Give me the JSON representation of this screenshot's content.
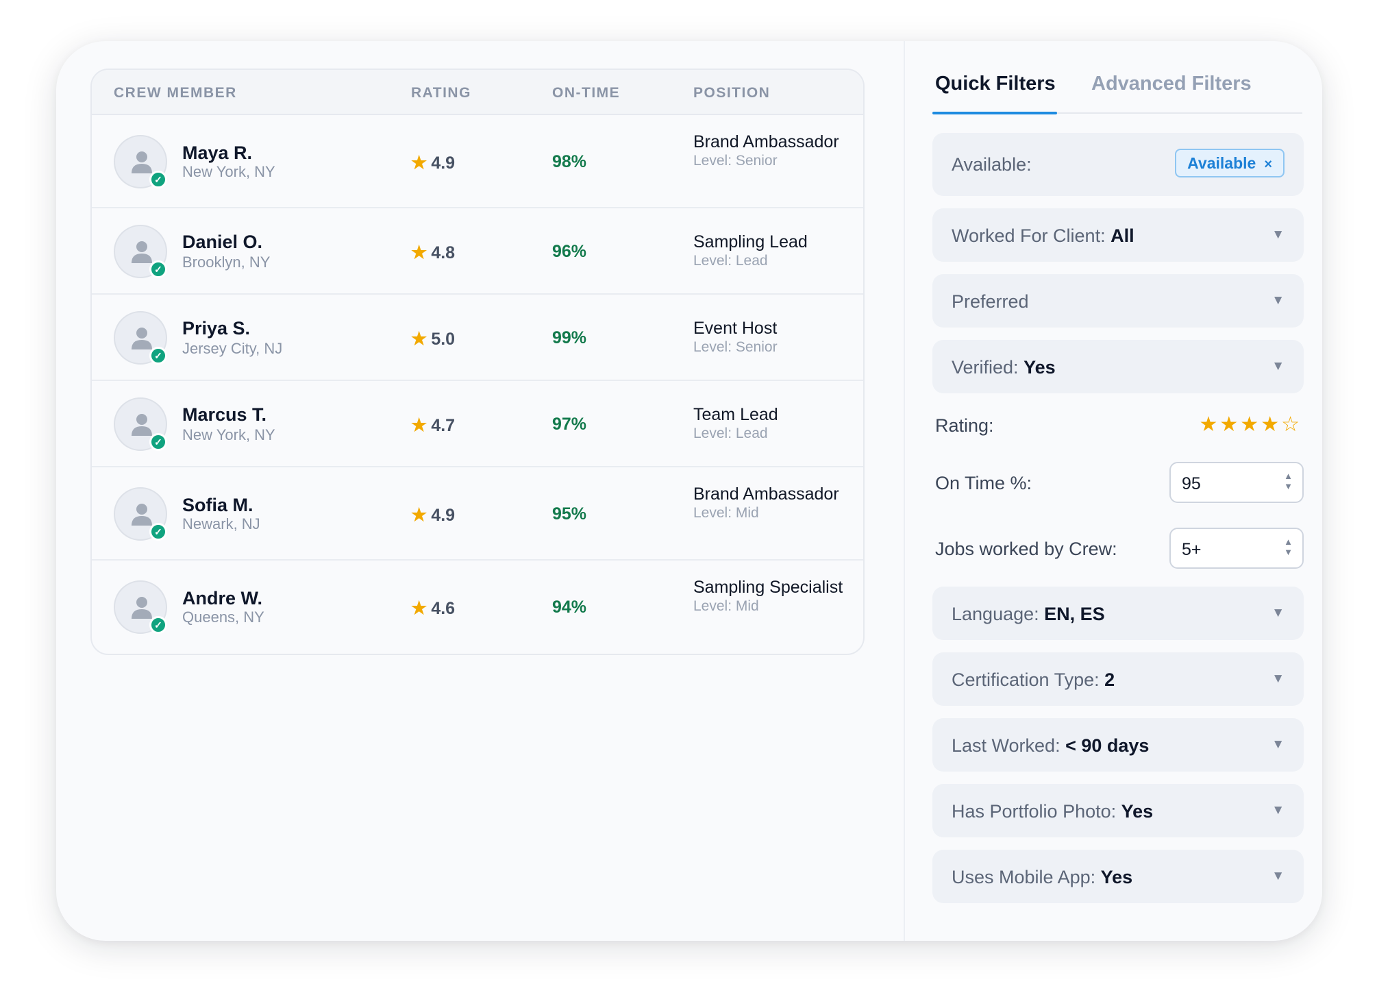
{
  "table": {
    "headers": {
      "member": "CREW MEMBER",
      "rating": "RATING",
      "ontime": "ON-TIME",
      "position": "POSITION"
    },
    "rows": [
      {
        "name": "Maya R.",
        "location": "New York, NY",
        "rating": "4.9",
        "ontime": "98%",
        "position": "Brand Ambassador",
        "level": "Level: Senior"
      },
      {
        "name": "Daniel O.",
        "location": "Brooklyn, NY",
        "rating": "4.8",
        "ontime": "96%",
        "position": "Sampling Lead",
        "level": "Level: Lead"
      },
      {
        "name": "Priya S.",
        "location": "Jersey City, NJ",
        "rating": "5.0",
        "ontime": "99%",
        "position": "Event Host",
        "level": "Level: Senior"
      },
      {
        "name": "Marcus T.",
        "location": "New York, NY",
        "rating": "4.7",
        "ontime": "97%",
        "position": "Team Lead",
        "level": "Level: Lead"
      },
      {
        "name": "Sofia M.",
        "location": "Newark, NJ",
        "rating": "4.9",
        "ontime": "95%",
        "position": "Brand Ambassador",
        "level": "Level: Mid"
      },
      {
        "name": "Andre W.",
        "location": "Queens, NY",
        "rating": "4.6",
        "ontime": "94%",
        "position": "Sampling Specialist",
        "level": "Level: Mid"
      }
    ],
    "star_glyph": "★",
    "verified_glyph": "✓"
  },
  "panel": {
    "tabs": {
      "quick": "Quick Filters",
      "advanced": "Advanced Filters"
    },
    "available": {
      "label": "Available:",
      "chip": "Available",
      "chip_close": "×"
    },
    "worked_for_client": {
      "label": "Worked For Client: ",
      "value": "All"
    },
    "preferred": {
      "label": "Preferred"
    },
    "verified": {
      "label": "Verified: ",
      "value": "Yes"
    },
    "rating": {
      "label": "Rating:",
      "stars_filled": "★★★★",
      "stars_empty": "☆",
      "value": 4,
      "max": 5
    },
    "on_time": {
      "label": "On Time %:",
      "value": "95"
    },
    "jobs_worked": {
      "label": "Jobs worked by Crew:",
      "value": "5+"
    },
    "language": {
      "label": "Language: ",
      "value": "EN, ES"
    },
    "certification": {
      "label": "Certification Type: ",
      "value": "2"
    },
    "last_worked": {
      "label": "Last Worked: ",
      "value": "< 90 days"
    },
    "portfolio": {
      "label": "Has Portfolio Photo: ",
      "value": "Yes"
    },
    "mobile_app": {
      "label": "Uses Mobile App: ",
      "value": "Yes"
    },
    "caret_glyph": "▼",
    "stepper_up": "▲",
    "stepper_down": "▼"
  },
  "colors": {
    "accent": "#1e8be0",
    "star": "#f2a900",
    "ontime_green": "#137a4c",
    "verified_badge": "#10a37f"
  }
}
